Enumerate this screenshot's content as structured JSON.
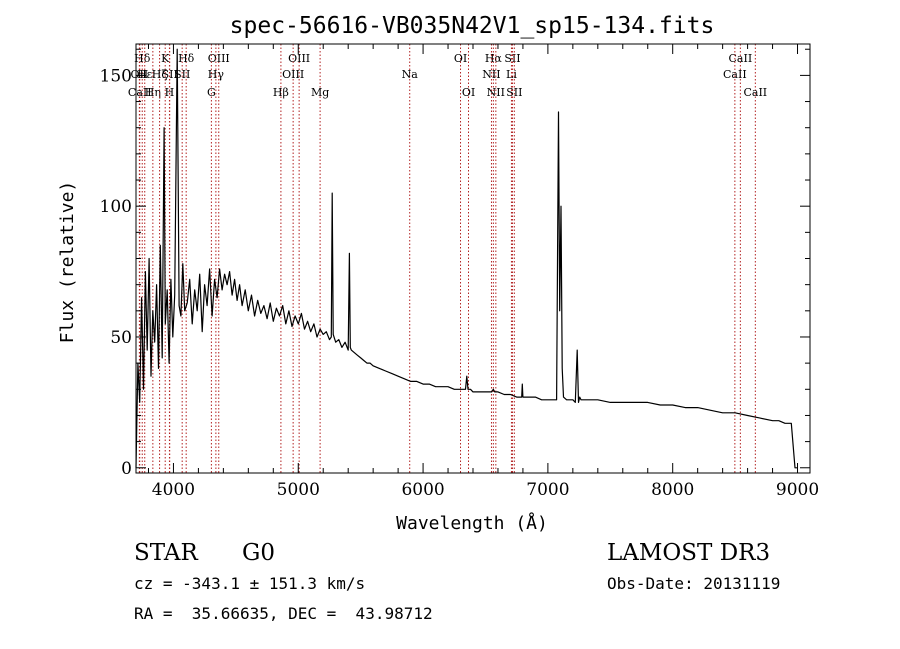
{
  "chart_data": {
    "type": "line",
    "title": "spec-56616-VB035N42V1_sp15-134.fits",
    "xlabel": "Wavelength (Å)",
    "ylabel": "Flux (relative)",
    "xlim": [
      3700,
      9100
    ],
    "ylim": [
      -2,
      162
    ],
    "x_ticks": [
      4000,
      5000,
      6000,
      7000,
      8000,
      9000
    ],
    "x_tick_labels": [
      "4000",
      "5000",
      "6000",
      "7000",
      "8000",
      "9000"
    ],
    "y_ticks": [
      0,
      50,
      100,
      150
    ],
    "y_tick_labels": [
      "0",
      "50",
      "100",
      "150"
    ],
    "series": [
      {
        "name": "spectrum",
        "x": [
          3700,
          3715,
          3730,
          3745,
          3760,
          3775,
          3790,
          3805,
          3820,
          3835,
          3850,
          3865,
          3880,
          3895,
          3910,
          3925,
          3935,
          3950,
          3965,
          3980,
          3995,
          4010,
          4030,
          4045,
          4060,
          4075,
          4090,
          4110,
          4130,
          4150,
          4170,
          4190,
          4210,
          4230,
          4250,
          4270,
          4290,
          4310,
          4330,
          4350,
          4370,
          4390,
          4410,
          4430,
          4450,
          4470,
          4490,
          4510,
          4530,
          4550,
          4575,
          4600,
          4625,
          4650,
          4675,
          4700,
          4725,
          4750,
          4775,
          4800,
          4825,
          4850,
          4875,
          4900,
          4925,
          4950,
          4975,
          5000,
          5025,
          5050,
          5075,
          5100,
          5125,
          5150,
          5175,
          5200,
          5225,
          5250,
          5265,
          5272,
          5280,
          5300,
          5325,
          5350,
          5375,
          5400,
          5410,
          5417,
          5425,
          5450,
          5475,
          5500,
          5525,
          5550,
          5575,
          5600,
          5650,
          5700,
          5750,
          5800,
          5850,
          5900,
          5950,
          6000,
          6050,
          6100,
          6150,
          6200,
          6250,
          6300,
          6320,
          6340,
          6350,
          6360,
          6380,
          6400,
          6450,
          6500,
          6550,
          6563,
          6575,
          6600,
          6650,
          6700,
          6750,
          6790,
          6795,
          6800,
          6850,
          6900,
          6950,
          7000,
          7050,
          7070,
          7085,
          7095,
          7105,
          7115,
          7125,
          7150,
          7200,
          7220,
          7235,
          7245,
          7255,
          7265,
          7280,
          7300,
          7400,
          7500,
          7600,
          7700,
          7800,
          7900,
          8000,
          8100,
          8200,
          8300,
          8400,
          8500,
          8600,
          8700,
          8800,
          8850,
          8900,
          8950,
          8980,
          9000
        ],
        "y": [
          0,
          40,
          25,
          65,
          30,
          75,
          45,
          80,
          35,
          60,
          48,
          70,
          38,
          85,
          42,
          130,
          55,
          68,
          40,
          72,
          50,
          66,
          160,
          62,
          58,
          78,
          60,
          63,
          72,
          55,
          68,
          60,
          74,
          52,
          70,
          62,
          76,
          58,
          72,
          65,
          76,
          68,
          74,
          70,
          75,
          66,
          72,
          64,
          70,
          62,
          68,
          60,
          66,
          58,
          64,
          59,
          62,
          57,
          63,
          56,
          61,
          58,
          62,
          55,
          60,
          54,
          58,
          55,
          59,
          53,
          56,
          52,
          55,
          50,
          53,
          51,
          52,
          49,
          50,
          105,
          51,
          48,
          49,
          46,
          48,
          45,
          82,
          46,
          45,
          44,
          43,
          42,
          41,
          40,
          40,
          39,
          38,
          37,
          36,
          35,
          34,
          33,
          33,
          32,
          32,
          31,
          31,
          31,
          30,
          30,
          30,
          30,
          35,
          30,
          30,
          29,
          29,
          29,
          29,
          30,
          29,
          29,
          28,
          28,
          27,
          27,
          32,
          27,
          27,
          27,
          26,
          26,
          26,
          26,
          136,
          60,
          100,
          38,
          27,
          26,
          26,
          25,
          45,
          25,
          27,
          26,
          26,
          26,
          26,
          25,
          25,
          25,
          25,
          24,
          24,
          23,
          23,
          22,
          21,
          21,
          20,
          19,
          18,
          18,
          17,
          17,
          0,
          0
        ]
      }
    ],
    "lines": [
      {
        "name": "Hδ",
        "wl": 3750,
        "row": 1
      },
      {
        "name": "OII",
        "wl": 3727,
        "row": 2
      },
      {
        "name": "CaII",
        "wl": 3730,
        "row": 3
      },
      {
        "name": "Hε",
        "wl": 3770,
        "row": 2
      },
      {
        "name": "Hη",
        "wl": 3835,
        "row": 3
      },
      {
        "name": "K",
        "wl": 3934,
        "row": 1
      },
      {
        "name": "Hζ",
        "wl": 3889,
        "row": 2
      },
      {
        "name": "SII",
        "wl": 3970,
        "row": 2
      },
      {
        "name": "H",
        "wl": 3968,
        "row": 3
      },
      {
        "name": "Hδ",
        "wl": 4102,
        "row": 1
      },
      {
        "name": "SII",
        "wl": 4070,
        "row": 2
      },
      {
        "name": "OIII",
        "wl": 4363,
        "row": 1
      },
      {
        "name": "Hγ",
        "wl": 4340,
        "row": 2
      },
      {
        "name": "G",
        "wl": 4304,
        "row": 3
      },
      {
        "name": "OIII",
        "wl": 5007,
        "row": 1
      },
      {
        "name": "OIII",
        "wl": 4959,
        "row": 2
      },
      {
        "name": "Hβ",
        "wl": 4861,
        "row": 3
      },
      {
        "name": "Mg",
        "wl": 5175,
        "row": 3
      },
      {
        "name": "Na",
        "wl": 5893,
        "row": 2
      },
      {
        "name": "OI",
        "wl": 6300,
        "row": 1
      },
      {
        "name": "OI",
        "wl": 6364,
        "row": 3
      },
      {
        "name": "Hα",
        "wl": 6563,
        "row": 1
      },
      {
        "name": "SII",
        "wl": 6716,
        "row": 1
      },
      {
        "name": "NII",
        "wl": 6548,
        "row": 2
      },
      {
        "name": "Li",
        "wl": 6708,
        "row": 2
      },
      {
        "name": "NII",
        "wl": 6583,
        "row": 3
      },
      {
        "name": "SII",
        "wl": 6731,
        "row": 3
      },
      {
        "name": "CaII",
        "wl": 8542,
        "row": 1
      },
      {
        "name": "CaII",
        "wl": 8498,
        "row": 2
      },
      {
        "name": "CaII",
        "wl": 8662,
        "row": 3
      }
    ]
  },
  "info": {
    "class": "STAR",
    "subclass": "G0",
    "survey": "LAMOST DR3",
    "redshift": "cz = -343.1 ± 151.3 km/s",
    "obs_date": "Obs-Date: 20131119",
    "coords": "RA =  35.66635, DEC =  43.98712"
  },
  "colors": {
    "line": "#000000",
    "marker": "#b22222"
  }
}
